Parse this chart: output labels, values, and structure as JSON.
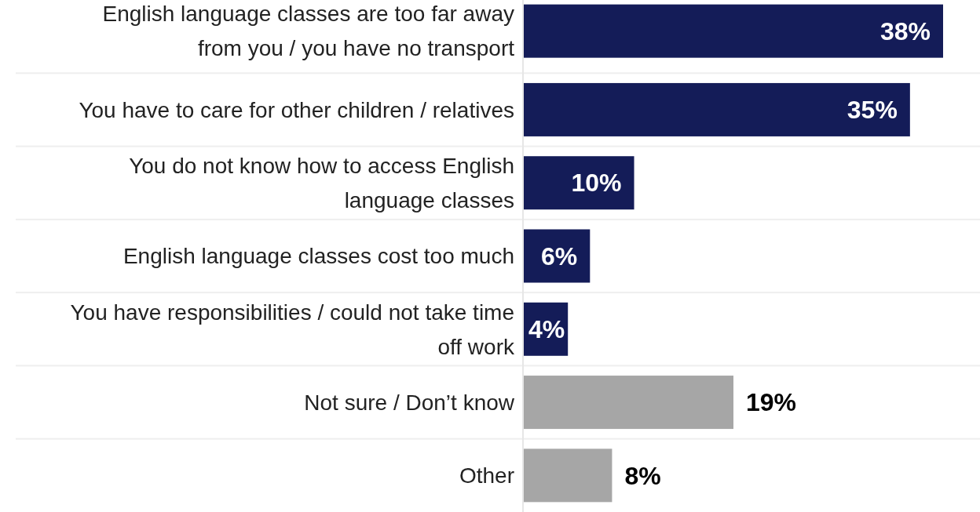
{
  "chart_data": {
    "type": "bar",
    "orientation": "horizontal",
    "categories": [
      "English language classes are too far away from you / you have no transport",
      "You have to care for other children / relatives",
      "You do not know how to access English language classes",
      "English language classes cost too much",
      "You have responsibilities / could not take time off work",
      "Not sure / Don’t know",
      "Other"
    ],
    "values": [
      38,
      35,
      10,
      6,
      4,
      19,
      8
    ],
    "value_labels": [
      "38%",
      "35%",
      "10%",
      "6%",
      "4%",
      "19%",
      "8%"
    ],
    "colors": [
      "#141c58",
      "#141c58",
      "#141c58",
      "#141c58",
      "#141c58",
      "#a6a6a6",
      "#a6a6a6"
    ],
    "relative": false
  }
}
